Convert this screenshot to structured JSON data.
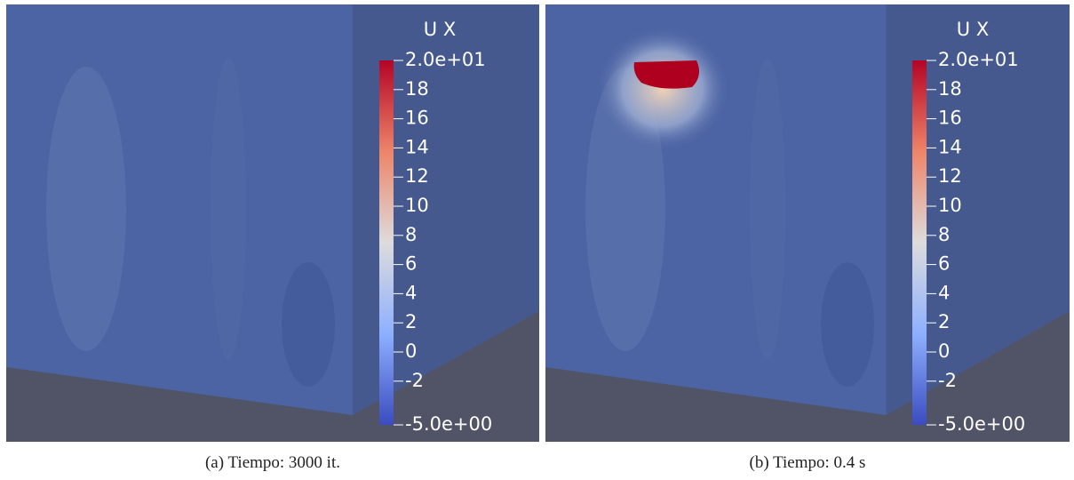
{
  "panels": [
    {
      "field": "U X",
      "ticks": [
        "2.0e+01",
        "18",
        "16",
        "14",
        "12",
        "10",
        "8",
        "6",
        "4",
        "2",
        "0",
        "-2",
        "-5.0e+00"
      ],
      "caption": "(a) Tiempo: 3000 it."
    },
    {
      "field": "U X",
      "ticks": [
        "2.0e+01",
        "18",
        "16",
        "14",
        "12",
        "10",
        "8",
        "6",
        "4",
        "2",
        "0",
        "-2",
        "-5.0e+00"
      ],
      "caption": "(b) Tiempo: 0.4 s"
    }
  ]
}
